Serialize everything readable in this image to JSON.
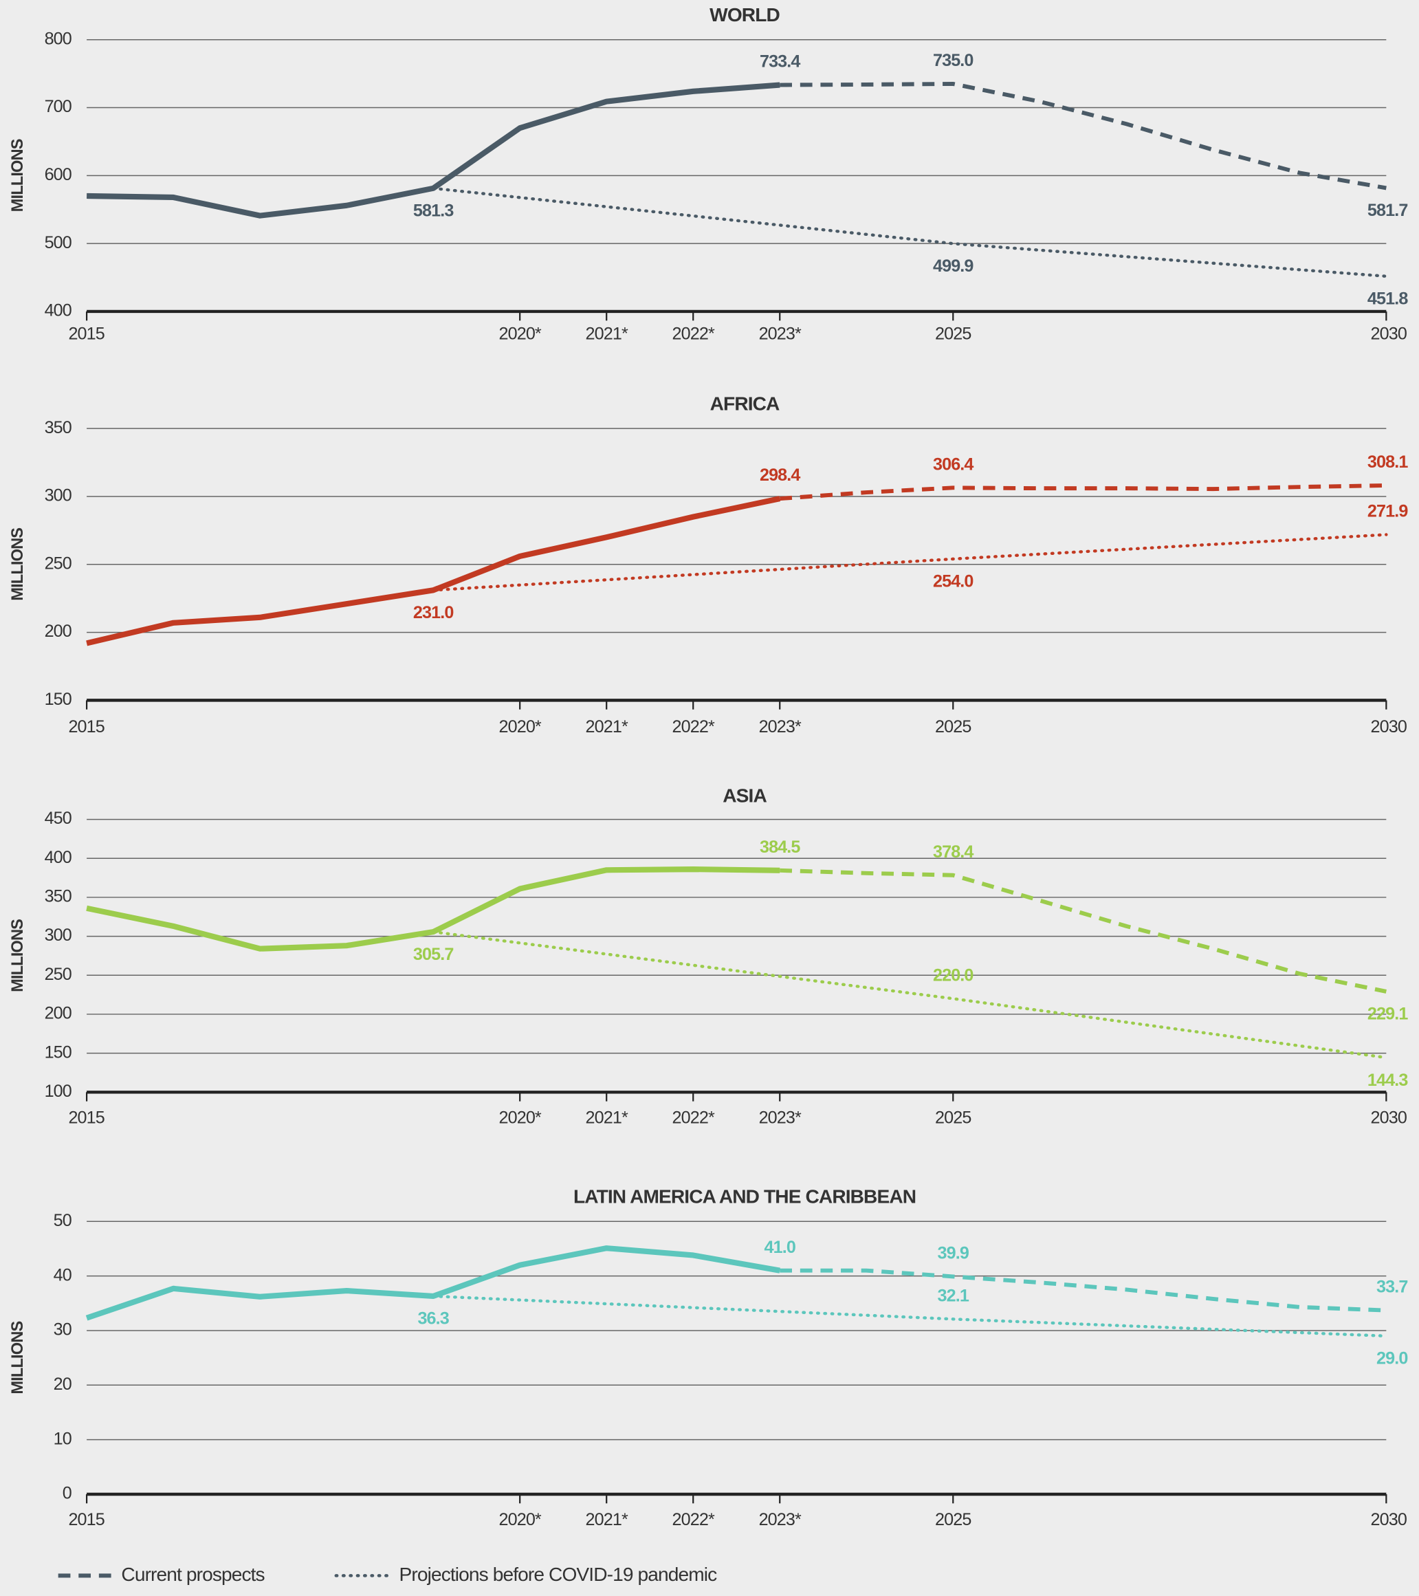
{
  "chart_data": [
    {
      "type": "line",
      "title": "WORLD",
      "ylabel": "MILLIONS",
      "xlim": [
        2015,
        2030
      ],
      "xticks": [
        2015,
        {
          "value": 2020,
          "label": "2020*"
        },
        {
          "value": 2021,
          "label": "2021*"
        },
        {
          "value": 2022,
          "label": "2022*"
        },
        {
          "value": 2023,
          "label": "2023*"
        },
        2025,
        2030
      ],
      "ylim": [
        400,
        800
      ],
      "yticks": [
        400,
        500,
        600,
        700,
        800
      ],
      "grid": true,
      "series": [
        {
          "style": "solid",
          "color": "#4a5a66",
          "x": [
            2015,
            2016,
            2017,
            2018,
            2019,
            2020,
            2021,
            2022,
            2023
          ],
          "values": [
            570,
            568,
            541,
            556,
            581.3,
            670,
            709,
            724,
            733.4
          ],
          "value_labels": [
            null,
            null,
            null,
            null,
            "581.3",
            null,
            null,
            null,
            "733.4"
          ]
        },
        {
          "name": "Current prospects",
          "style": "dashed",
          "color": "#4a5a66",
          "x": [
            2023,
            2024,
            2025,
            2026,
            2027,
            2028,
            2029,
            2030
          ],
          "values": [
            733.4,
            734,
            735.0,
            709,
            676,
            638,
            604,
            581.7
          ],
          "value_labels": [
            null,
            null,
            "735.0",
            null,
            null,
            null,
            null,
            "581.7"
          ]
        },
        {
          "name": "Projections before COVID-19 pandemic",
          "style": "dotted",
          "color": "#4a5a66",
          "x": [
            2019,
            2025,
            2030
          ],
          "values": [
            581.3,
            499.9,
            451.8
          ],
          "value_labels": [
            null,
            "499.9",
            "451.8"
          ]
        }
      ]
    },
    {
      "type": "line",
      "title": "AFRICA",
      "ylabel": "MILLIONS",
      "xlim": [
        2015,
        2030
      ],
      "xticks": [
        2015,
        {
          "value": 2020,
          "label": "2020*"
        },
        {
          "value": 2021,
          "label": "2021*"
        },
        {
          "value": 2022,
          "label": "2022*"
        },
        {
          "value": 2023,
          "label": "2023*"
        },
        2025,
        2030
      ],
      "ylim": [
        150,
        350
      ],
      "yticks": [
        150,
        200,
        250,
        300,
        350
      ],
      "grid": true,
      "series": [
        {
          "style": "solid",
          "color": "#c23a22",
          "x": [
            2015,
            2016,
            2017,
            2018,
            2019,
            2020,
            2021,
            2022,
            2023
          ],
          "values": [
            192,
            207,
            211,
            221,
            231.0,
            256,
            270,
            285,
            298.4
          ],
          "value_labels": [
            null,
            null,
            null,
            null,
            "231.0",
            null,
            null,
            null,
            "298.4"
          ]
        },
        {
          "name": "Current prospects",
          "style": "dashed",
          "color": "#c23a22",
          "x": [
            2023,
            2024,
            2025,
            2026,
            2027,
            2028,
            2029,
            2030
          ],
          "values": [
            298.4,
            303,
            306.4,
            306,
            306,
            305.5,
            307,
            308.1
          ],
          "value_labels": [
            null,
            null,
            "306.4",
            null,
            null,
            null,
            null,
            "308.1"
          ]
        },
        {
          "name": "Projections before COVID-19 pandemic",
          "style": "dotted",
          "color": "#c23a22",
          "x": [
            2019,
            2025,
            2030
          ],
          "values": [
            231.0,
            254.0,
            271.9
          ],
          "value_labels": [
            null,
            "254.0",
            "271.9"
          ]
        }
      ]
    },
    {
      "type": "line",
      "title": "ASIA",
      "ylabel": "MILLIONS",
      "xlim": [
        2015,
        2030
      ],
      "xticks": [
        2015,
        {
          "value": 2020,
          "label": "2020*"
        },
        {
          "value": 2021,
          "label": "2021*"
        },
        {
          "value": 2022,
          "label": "2022*"
        },
        {
          "value": 2023,
          "label": "2023*"
        },
        2025,
        2030
      ],
      "ylim": [
        100,
        450
      ],
      "yticks": [
        100,
        150,
        200,
        250,
        300,
        350,
        400,
        450
      ],
      "grid": true,
      "series": [
        {
          "style": "solid",
          "color": "#9ccc4c",
          "x": [
            2015,
            2016,
            2017,
            2018,
            2019,
            2020,
            2021,
            2022,
            2023
          ],
          "values": [
            336,
            313,
            284,
            288,
            305.7,
            361,
            385,
            386,
            384.5
          ],
          "value_labels": [
            null,
            null,
            null,
            null,
            "305.7",
            null,
            null,
            null,
            "384.5"
          ]
        },
        {
          "name": "Current prospects",
          "style": "dashed",
          "color": "#9ccc4c",
          "x": [
            2023,
            2024,
            2025,
            2026,
            2027,
            2028,
            2029,
            2030
          ],
          "values": [
            384.5,
            381,
            378.4,
            346,
            313,
            284,
            252,
            229.1
          ],
          "value_labels": [
            null,
            null,
            "378.4",
            null,
            null,
            null,
            null,
            "229.1"
          ]
        },
        {
          "name": "Projections before COVID-19 pandemic",
          "style": "dotted",
          "color": "#9ccc4c",
          "x": [
            2019,
            2025,
            2030
          ],
          "values": [
            305.7,
            220.0,
            144.3
          ],
          "value_labels": [
            null,
            "220.0",
            "144.3"
          ]
        }
      ]
    },
    {
      "type": "line",
      "title": "LATIN AMERICA AND THE CARIBBEAN",
      "ylabel": "MILLIONS",
      "xlim": [
        2015,
        2030
      ],
      "xticks": [
        2015,
        {
          "value": 2020,
          "label": "2020*"
        },
        {
          "value": 2021,
          "label": "2021*"
        },
        {
          "value": 2022,
          "label": "2022*"
        },
        {
          "value": 2023,
          "label": "2023*"
        },
        2025,
        2030
      ],
      "ylim": [
        0,
        50
      ],
      "yticks": [
        0,
        10,
        20,
        30,
        40,
        50
      ],
      "grid": true,
      "series": [
        {
          "style": "solid",
          "color": "#5cc6bc",
          "x": [
            2015,
            2016,
            2017,
            2018,
            2019,
            2020,
            2021,
            2022,
            2023
          ],
          "values": [
            32.3,
            37.7,
            36.2,
            37.3,
            36.3,
            42.0,
            45.1,
            43.8,
            41.0
          ],
          "value_labels": [
            null,
            null,
            null,
            null,
            "36.3",
            null,
            null,
            null,
            "41.0"
          ]
        },
        {
          "name": "Current prospects",
          "style": "dashed",
          "color": "#5cc6bc",
          "x": [
            2023,
            2024,
            2025,
            2026,
            2027,
            2028,
            2029,
            2030
          ],
          "values": [
            41.0,
            41.0,
            39.9,
            38.8,
            37.5,
            35.8,
            34.3,
            33.7
          ],
          "value_labels": [
            null,
            null,
            "39.9",
            null,
            null,
            null,
            null,
            "33.7"
          ]
        },
        {
          "name": "Projections before COVID-19 pandemic",
          "style": "dotted",
          "color": "#5cc6bc",
          "x": [
            2019,
            2025,
            2030
          ],
          "values": [
            36.3,
            32.1,
            29.0
          ],
          "value_labels": [
            null,
            "32.1",
            "29.0"
          ]
        }
      ]
    }
  ],
  "legend": [
    {
      "label": "Current prospects",
      "style": "dashed",
      "color": "#4a5a66"
    },
    {
      "label": "Projections before COVID-19 pandemic",
      "style": "dotted",
      "color": "#4a5a66"
    }
  ]
}
